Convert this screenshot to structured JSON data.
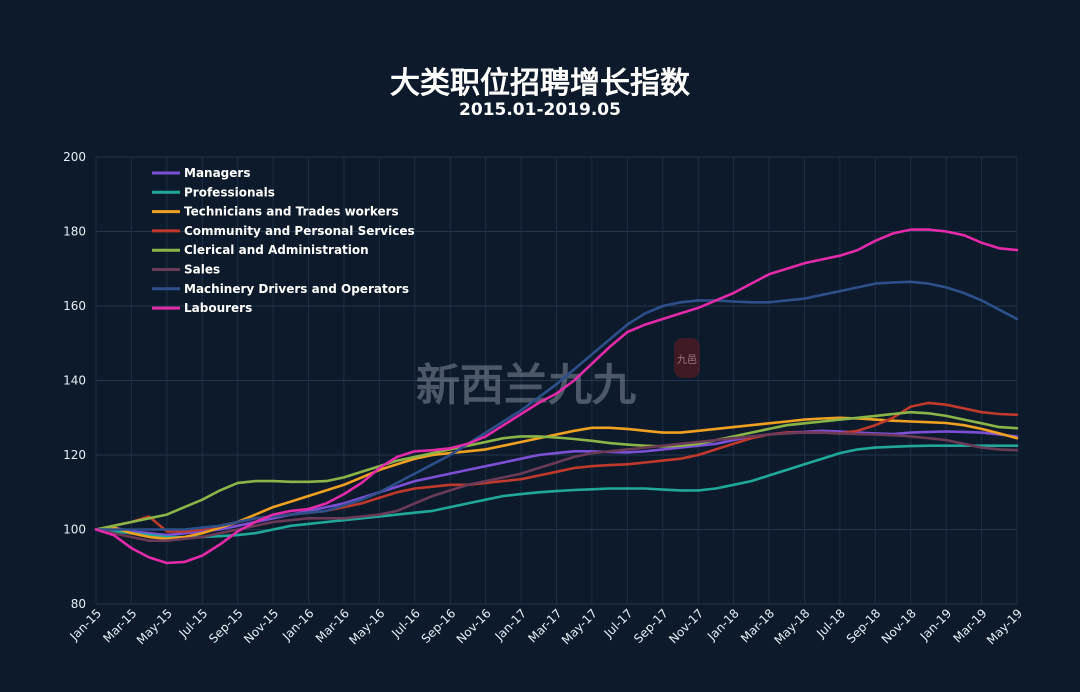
{
  "chart_data": {
    "type": "line",
    "title": "大类职位招聘增长指数",
    "subtitle": "2015.01-2019.05",
    "xlabel": "",
    "ylabel": "",
    "ylim": [
      80,
      200
    ],
    "yticks": [
      80,
      100,
      120,
      140,
      160,
      180,
      200
    ],
    "grid": true,
    "legend_position": "top-left",
    "watermark": "新西兰九九",
    "seal_text": "九邑",
    "x_tick_labels": [
      "Jan-15",
      "Mar-15",
      "May-15",
      "Jul-15",
      "Sep-15",
      "Nov-15",
      "Jan-16",
      "Mar-16",
      "May-16",
      "Jul-16",
      "Sep-16",
      "Nov-16",
      "Jan-17",
      "Mar-17",
      "May-17",
      "Jul-17",
      "Sep-17",
      "Nov-17",
      "Jan-18",
      "Mar-18",
      "May-18",
      "Jul-18",
      "Sep-18",
      "Nov-18",
      "Jan-19",
      "Mar-19",
      "May-19"
    ],
    "x": [
      "Jan-15",
      "Feb-15",
      "Mar-15",
      "Apr-15",
      "May-15",
      "Jun-15",
      "Jul-15",
      "Aug-15",
      "Sep-15",
      "Oct-15",
      "Nov-15",
      "Dec-15",
      "Jan-16",
      "Feb-16",
      "Mar-16",
      "Apr-16",
      "May-16",
      "Jun-16",
      "Jul-16",
      "Aug-16",
      "Sep-16",
      "Oct-16",
      "Nov-16",
      "Dec-16",
      "Jan-17",
      "Feb-17",
      "Mar-17",
      "Apr-17",
      "May-17",
      "Jun-17",
      "Jul-17",
      "Aug-17",
      "Sep-17",
      "Oct-17",
      "Nov-17",
      "Dec-17",
      "Jan-18",
      "Feb-18",
      "Mar-18",
      "Apr-18",
      "May-18",
      "Jun-18",
      "Jul-18",
      "Aug-18",
      "Sep-18",
      "Oct-18",
      "Nov-18",
      "Dec-18",
      "Jan-19",
      "Feb-19",
      "Mar-19",
      "Apr-19",
      "May-19"
    ],
    "series": [
      {
        "name": "Managers",
        "color": "#7b4fd6",
        "values": [
          100,
          100.5,
          99.5,
          99,
          98.5,
          99,
          99.5,
          100,
          101,
          102,
          103,
          104,
          105,
          106,
          107,
          108.5,
          110,
          111.5,
          113,
          114,
          115,
          116,
          117,
          118,
          119,
          120,
          120.5,
          121,
          121,
          120.8,
          120.7,
          121,
          121.5,
          122,
          122.5,
          123,
          124,
          125,
          125.5,
          126,
          126.2,
          126.5,
          126.3,
          126,
          125.8,
          125.6,
          126,
          126.2,
          126.3,
          126.2,
          126,
          125.5,
          125
        ]
      },
      {
        "name": "Professionals",
        "color": "#1fa89a",
        "values": [
          100,
          99.5,
          99,
          98.5,
          98,
          98,
          98,
          98.2,
          98.5,
          99,
          100,
          101,
          101.5,
          102,
          102.5,
          103,
          103.5,
          104,
          104.5,
          105,
          106,
          107,
          108,
          109,
          109.5,
          110,
          110.3,
          110.6,
          110.8,
          111,
          111,
          111,
          110.7,
          110.5,
          110.5,
          111,
          112,
          113,
          114.5,
          116,
          117.5,
          119,
          120.5,
          121.5,
          122,
          122.2,
          122.4,
          122.5,
          122.5,
          122.5,
          122.5,
          122.5,
          122.5
        ]
      },
      {
        "name": "Technicians and Trades workers",
        "color": "#f0a020",
        "values": [
          100,
          100.5,
          99,
          98,
          97.5,
          98,
          99,
          100.5,
          102,
          104,
          106,
          107.5,
          109,
          110.5,
          112,
          114,
          116,
          117.5,
          119,
          120,
          120.5,
          121,
          121.5,
          122.5,
          123.5,
          124.5,
          125.5,
          126.5,
          127.3,
          127.3,
          127,
          126.5,
          126,
          126,
          126.5,
          127,
          127.5,
          128,
          128.5,
          129,
          129.5,
          129.8,
          130,
          129.8,
          129.5,
          129.2,
          129,
          128.8,
          128.6,
          128,
          127,
          125.8,
          124.5
        ]
      },
      {
        "name": "Community and Personal Services",
        "color": "#c0392b",
        "values": [
          100,
          101,
          102,
          103.5,
          99.5,
          99.5,
          100,
          101,
          102,
          103,
          103.5,
          104,
          104.5,
          105,
          106,
          107,
          108.5,
          110,
          111,
          111.5,
          112,
          112,
          112.5,
          113,
          113.5,
          114.5,
          115.5,
          116.5,
          117,
          117.3,
          117.5,
          118,
          118.5,
          119,
          120,
          121.5,
          123,
          124.5,
          125.5,
          126,
          126,
          126,
          125.8,
          126.5,
          128,
          130,
          133,
          134,
          133.5,
          132.5,
          131.5,
          131,
          130.8
        ]
      },
      {
        "name": "Clerical and Administration",
        "color": "#8ab547",
        "values": [
          100,
          101,
          102,
          103,
          104,
          106,
          108,
          110.5,
          112.5,
          113,
          113,
          112.8,
          112.8,
          113,
          114,
          115.5,
          117,
          118.5,
          119.5,
          120.5,
          121.5,
          122.5,
          123.5,
          124.5,
          125,
          125,
          124.7,
          124.3,
          123.8,
          123.2,
          122.8,
          122.5,
          122.3,
          122.5,
          123,
          124,
          125,
          126,
          127,
          128,
          128.5,
          129,
          129.5,
          130,
          130.5,
          131,
          131.5,
          131.2,
          130.5,
          129.5,
          128.5,
          127.5,
          127.2
        ]
      },
      {
        "name": "Sales",
        "color": "#6b3a57",
        "values": [
          100,
          99,
          98,
          97,
          97,
          97.5,
          98,
          99,
          100,
          101,
          102,
          102.5,
          103,
          103,
          103,
          103.5,
          104,
          105,
          107,
          109,
          110.5,
          112,
          113,
          114,
          115,
          116.5,
          118,
          119.5,
          120.5,
          121,
          121.5,
          122,
          122.5,
          123,
          123.5,
          124,
          124.5,
          125,
          125.5,
          125.8,
          126,
          126,
          125.8,
          125.6,
          125.5,
          125.3,
          125,
          124.5,
          124,
          123,
          122,
          121.5,
          121.3
        ]
      },
      {
        "name": "Machinery Drivers and Operators",
        "color": "#2d4f8a",
        "values": [
          100,
          100,
          100,
          100,
          100,
          100,
          100.5,
          101,
          102,
          103,
          103.5,
          104,
          104.5,
          105,
          106.5,
          108,
          110,
          112.5,
          115,
          117.5,
          120,
          123,
          126,
          129,
          132,
          135.5,
          139,
          143,
          147,
          151,
          155,
          158,
          160,
          161,
          161.5,
          161.5,
          161.2,
          161,
          161,
          161.5,
          162,
          163,
          164,
          165,
          166,
          166.3,
          166.5,
          166,
          165,
          163.5,
          161.5,
          159,
          156.5
        ]
      },
      {
        "name": "Labourers",
        "color": "#e32aa8",
        "values": [
          100,
          98.5,
          95,
          92.5,
          91,
          91.3,
          93,
          96,
          99.5,
          102,
          104,
          105,
          105.5,
          107,
          109.5,
          112.5,
          116.5,
          119.5,
          121,
          121.3,
          121.8,
          123,
          125,
          128,
          131,
          134,
          136.5,
          140,
          144.5,
          149,
          153,
          155,
          156.5,
          158,
          159.5,
          161.5,
          163.5,
          166,
          168.5,
          170,
          171.5,
          172.5,
          173.5,
          175,
          177.5,
          179.5,
          180.5,
          180.5,
          180,
          179,
          177,
          175.5,
          175
        ]
      }
    ]
  }
}
